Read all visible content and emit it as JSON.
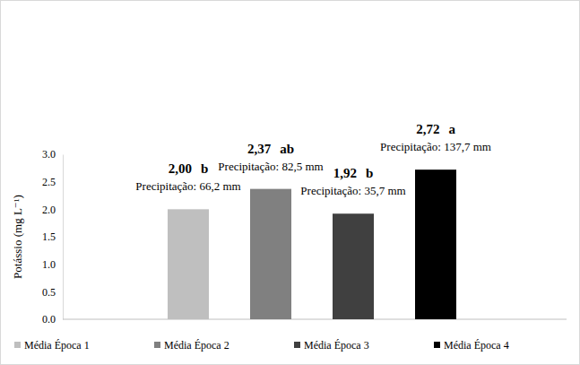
{
  "chart_data": {
    "type": "bar",
    "y_label": "Potássio (mg L⁻¹)",
    "categories": [
      "Média Época 1",
      "Média Época 2",
      "Média Época 3",
      "Média Época 4"
    ],
    "values": [
      2.0,
      2.37,
      1.92,
      2.72
    ],
    "value_labels": [
      "2,00",
      "2,37",
      "1,92",
      "2,72"
    ],
    "letters": [
      "b",
      "ab",
      "b",
      "a"
    ],
    "annotations": [
      "Precipitação: 66,2 mm",
      "Precipitação: 82,5 mm",
      "Precipitação: 35,7 mm",
      "Precipitação: 137,7 mm"
    ],
    "colors": [
      "#bfbfbf",
      "#808080",
      "#404040",
      "#000000"
    ],
    "ylim": [
      0,
      3
    ],
    "yticks": [
      {
        "value": 0,
        "label": "0.0"
      },
      0.5,
      {
        "value": 1,
        "label": "1.0"
      },
      1.5,
      {
        "value": 2,
        "label": "2.0"
      },
      2.5,
      {
        "value": 3,
        "label": "3.0"
      }
    ],
    "grid": false,
    "legend": "bottom",
    "data_labels": true,
    "tick_labels": "y"
  }
}
